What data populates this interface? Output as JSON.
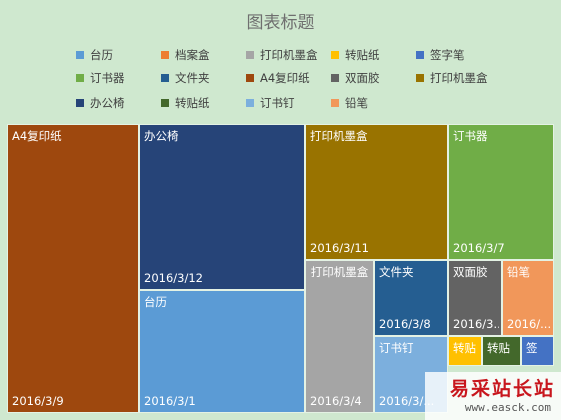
{
  "chart_data": {
    "type": "treemap",
    "title": "图表标题",
    "legend_position": "top",
    "legend": [
      {
        "name": "台历",
        "color": "#5b9bd5"
      },
      {
        "name": "档案盒",
        "color": "#ed7d31"
      },
      {
        "name": "打印机墨盒",
        "color": "#a5a5a5"
      },
      {
        "name": "转贴纸",
        "color": "#ffc000"
      },
      {
        "name": "签字笔",
        "color": "#4472c4"
      },
      {
        "name": "订书器",
        "color": "#70ad47"
      },
      {
        "name": "文件夹",
        "color": "#255e91"
      },
      {
        "name": "A4复印纸",
        "color": "#9e480e"
      },
      {
        "name": "双面胶",
        "color": "#636363"
      },
      {
        "name": "打印机墨盒",
        "color": "#997300"
      },
      {
        "name": "办公椅",
        "color": "#264478"
      },
      {
        "name": "转贴纸",
        "color": "#43682b"
      },
      {
        "name": "订书钉",
        "color": "#7cafdd"
      },
      {
        "name": "铅笔",
        "color": "#f1975a"
      }
    ],
    "tiles": [
      {
        "name": "A4复印纸",
        "date": "2016/3/9",
        "color": "#9e480e",
        "value": 62,
        "group": 0
      },
      {
        "name": "办公椅",
        "date": "2016/3/12",
        "color": "#264478",
        "value": 44,
        "group": 1
      },
      {
        "name": "台历",
        "date": "2016/3/1",
        "color": "#5b9bd5",
        "value": 32,
        "group": 1
      },
      {
        "name": "打印机墨盒",
        "date": "2016/3/11",
        "color": "#997300",
        "value": 29,
        "group": 2
      },
      {
        "name": "订书器",
        "date": "2016/3/7",
        "color": "#70ad47",
        "value": 22,
        "group": 2
      },
      {
        "name": "打印机墨盒",
        "date": "2016/3/4",
        "color": "#a5a5a5",
        "value": 14,
        "group": 3
      },
      {
        "name": "文件夹",
        "date": "2016/3/8",
        "color": "#255e91",
        "value": 10,
        "group": 3
      },
      {
        "name": "双面胶",
        "date": "2016/3...",
        "color": "#636363",
        "value": 7,
        "group": 3
      },
      {
        "name": "铅笔",
        "date": "2016/...",
        "color": "#f1975a",
        "value": 7,
        "group": 3
      },
      {
        "name": "订书钉",
        "date": "2016/3/...",
        "color": "#7cafdd",
        "value": 7,
        "group": 3
      },
      {
        "name": "转贴",
        "date": "",
        "color": "#ffc000",
        "value": 2,
        "group": 3
      },
      {
        "name": "转贴",
        "date": "",
        "color": "#43682b",
        "value": 2,
        "group": 3
      },
      {
        "name": "签",
        "date": "",
        "color": "#4472c4",
        "value": 1.5,
        "group": 3
      }
    ]
  },
  "watermark": {
    "text": "易采站长站",
    "url": "www.easck.com"
  }
}
